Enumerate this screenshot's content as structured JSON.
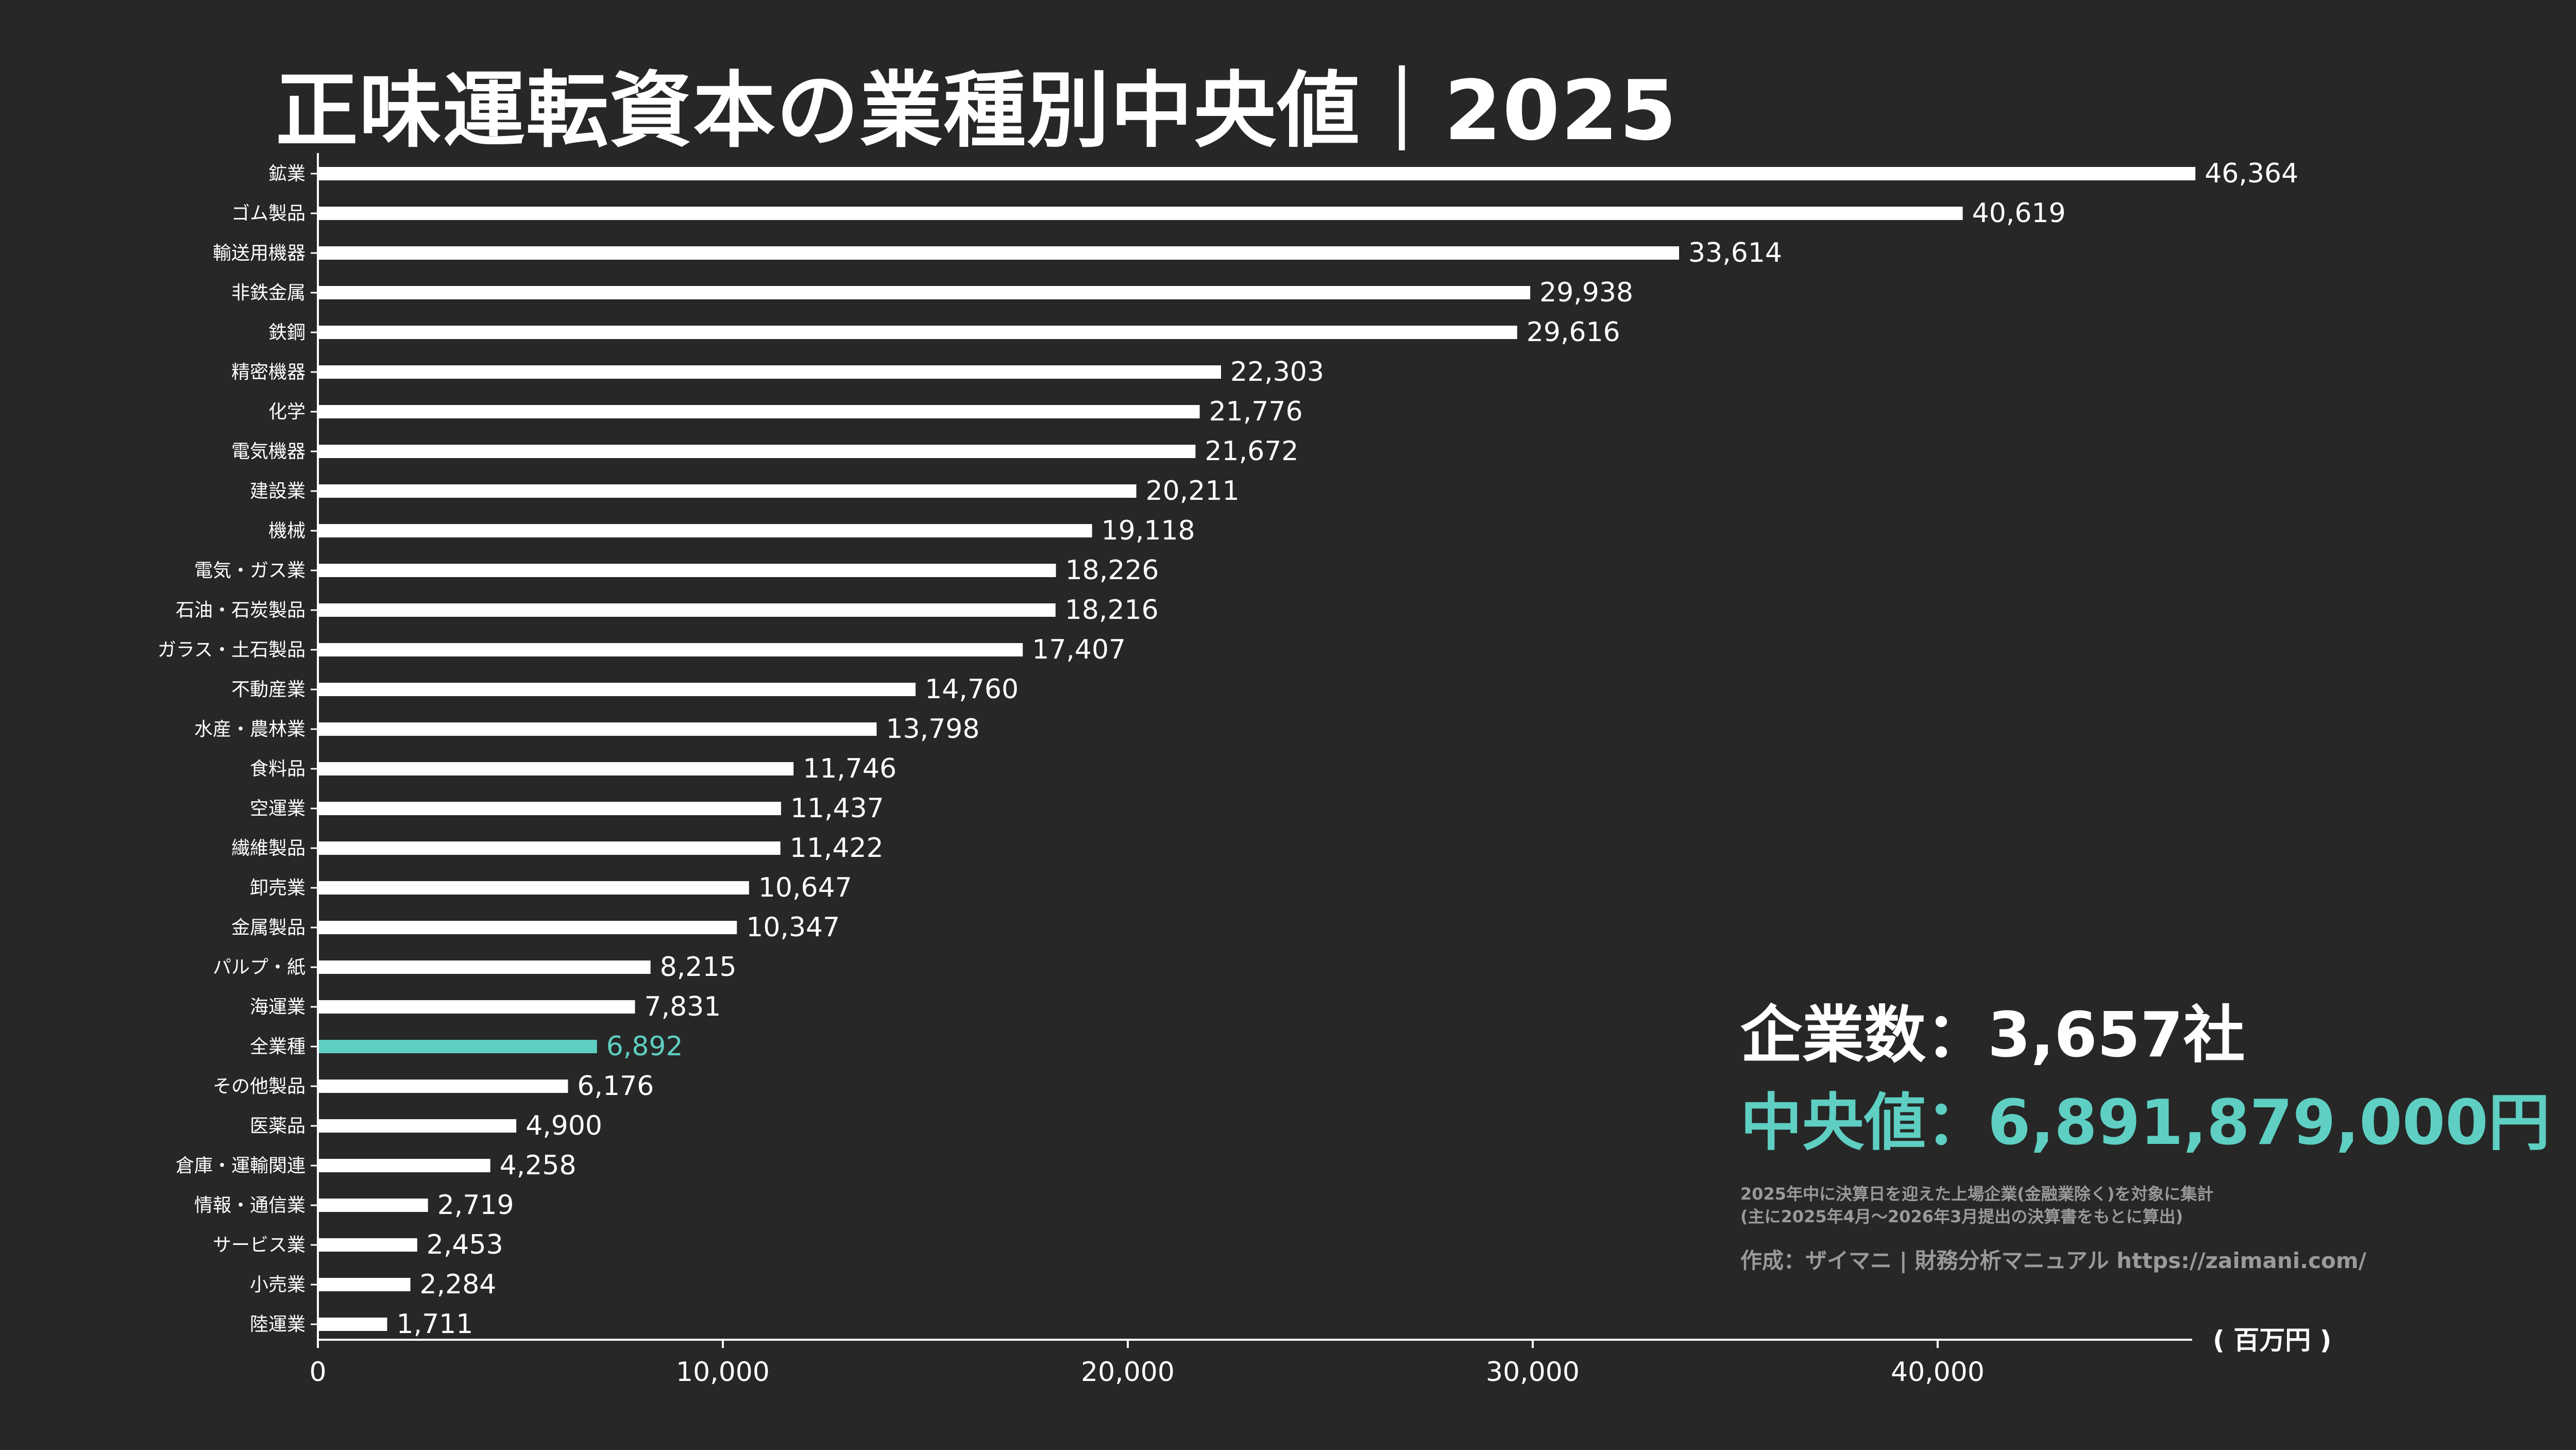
{
  "title": "正味運転資本の業種別中央値｜2025",
  "info": {
    "count_label": "企業数：",
    "count_value": "3,657社",
    "median_label": "中央値：",
    "median_value": "6,891,879,000円",
    "note_line1": "2025年中に決算日を迎えた上場企業(金融業除く)を対象に集計",
    "note_line2": "(主に2025年4月〜2026年3月提出の決算書をもとに算出)",
    "credit": "作成：ザイマニ | 財務分析マニュアル https://zaimani.com/"
  },
  "colors": {
    "background": "#272727",
    "bar": "#ffffff",
    "highlight": "#5ecfc2",
    "axis": "#ffffff"
  },
  "chart_data": {
    "type": "bar",
    "orientation": "horizontal",
    "unit_label": "( 百万円 )",
    "categories": [
      "鉱業",
      "ゴム製品",
      "輸送用機器",
      "非鉄金属",
      "鉄鋼",
      "精密機器",
      "化学",
      "電気機器",
      "建設業",
      "機械",
      "電気・ガス業",
      "石油・石炭製品",
      "ガラス・土石製品",
      "不動産業",
      "水産・農林業",
      "食料品",
      "空運業",
      "繊維製品",
      "卸売業",
      "金属製品",
      "パルプ・紙",
      "海運業",
      "全業種",
      "その他製品",
      "医薬品",
      "倉庫・運輸関連",
      "情報・通信業",
      "サービス業",
      "小売業",
      "陸運業"
    ],
    "values": [
      46364,
      40619,
      33614,
      29938,
      29616,
      22303,
      21776,
      21672,
      20211,
      19118,
      18226,
      18216,
      17407,
      14760,
      13798,
      11746,
      11437,
      11422,
      10647,
      10347,
      8215,
      7831,
      6892,
      6176,
      4900,
      4258,
      2719,
      2453,
      2284,
      1711
    ],
    "value_labels": [
      "46,364",
      "40,619",
      "33,614",
      "29,938",
      "29,616",
      "22,303",
      "21,776",
      "21,672",
      "20,211",
      "19,118",
      "18,226",
      "18,216",
      "17,407",
      "14,760",
      "13,798",
      "11,746",
      "11,437",
      "11,422",
      "10,647",
      "10,347",
      "8,215",
      "7,831",
      "6,892",
      "6,176",
      "4,900",
      "4,258",
      "2,719",
      "2,453",
      "2,284",
      "1,711"
    ],
    "highlight_category": "全業種",
    "xticks": [
      0,
      10000,
      20000,
      30000,
      40000
    ],
    "xtick_labels": [
      "0",
      "10,000",
      "20,000",
      "30,000",
      "40,000"
    ],
    "xlim": [
      0,
      46364
    ],
    "grid": false
  }
}
